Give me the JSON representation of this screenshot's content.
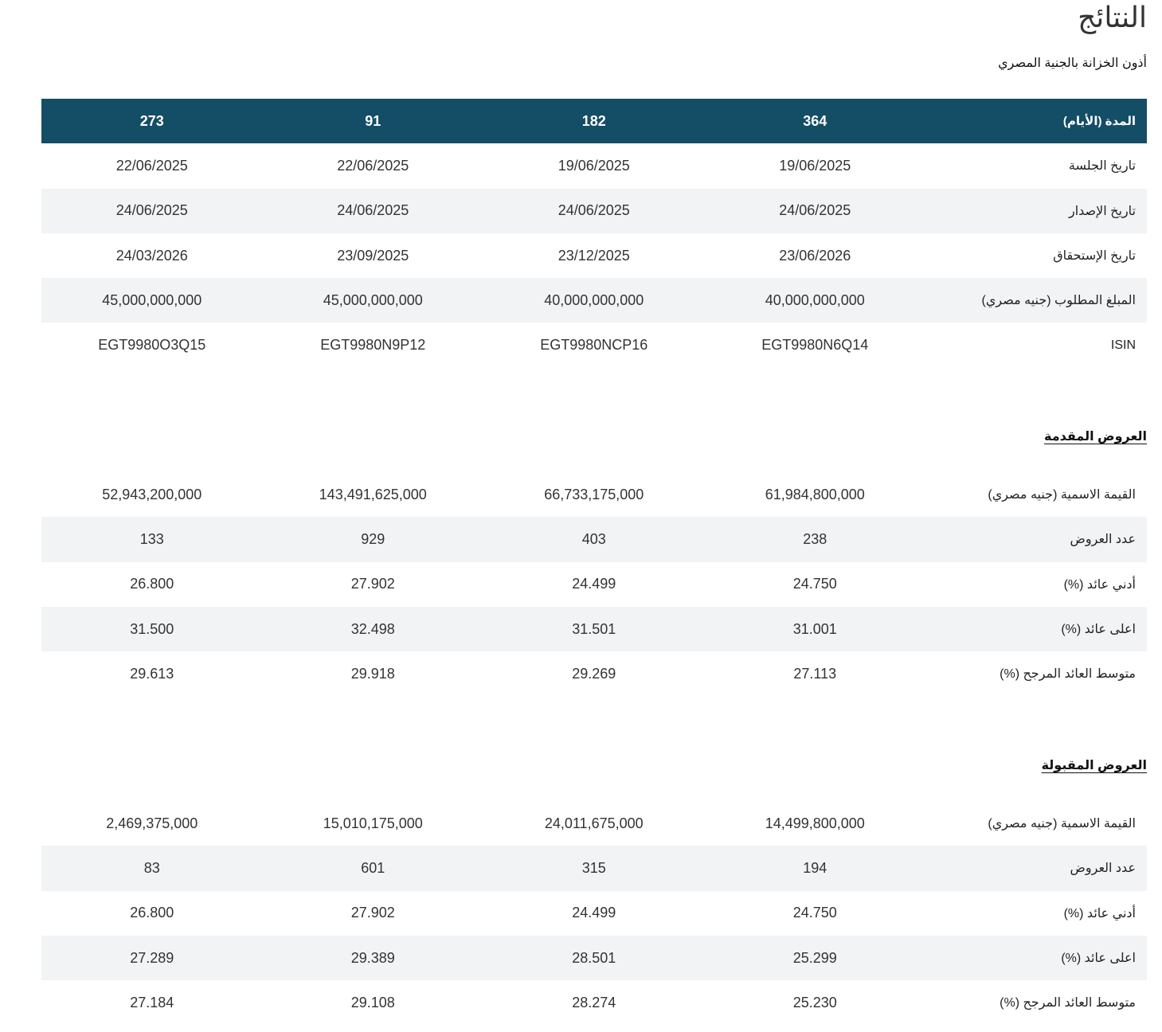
{
  "page": {
    "title": "النتائج",
    "subtitle": "أذون الخزانة بالجنية المصري"
  },
  "overview": {
    "header": {
      "label": "المدة (الأيام)",
      "values": [
        "364",
        "182",
        "91",
        "273"
      ]
    },
    "rows": [
      {
        "label": "تاريخ الجلسة",
        "values": [
          "19/06/2025",
          "19/06/2025",
          "22/06/2025",
          "22/06/2025"
        ]
      },
      {
        "label": "تاريخ الإصدار",
        "values": [
          "24/06/2025",
          "24/06/2025",
          "24/06/2025",
          "24/06/2025"
        ]
      },
      {
        "label": "تاريخ الإستحقاق",
        "values": [
          "23/06/2026",
          "23/12/2025",
          "23/09/2025",
          "24/03/2026"
        ]
      },
      {
        "label": "المبلغ المطلوب (جنيه مصري)",
        "values": [
          "40,000,000,000",
          "40,000,000,000",
          "45,000,000,000",
          "45,000,000,000"
        ]
      },
      {
        "label": "ISIN",
        "values": [
          "EGT9980N6Q14",
          "EGT9980NCP16",
          "EGT9980N9P12",
          "EGT9980O3Q15"
        ]
      }
    ]
  },
  "submitted_bids": {
    "heading": "العروض المقدمة",
    "rows": [
      {
        "label": "القيمة الاسمية (جنيه مصري)",
        "values": [
          "61,984,800,000",
          "66,733,175,000",
          "143,491,625,000",
          "52,943,200,000"
        ]
      },
      {
        "label": "عدد العروض",
        "values": [
          "238",
          "403",
          "929",
          "133"
        ]
      },
      {
        "label": "أدني عائد (%)",
        "values": [
          "24.750",
          "24.499",
          "27.902",
          "26.800"
        ]
      },
      {
        "label": "اعلى عائد (%)",
        "values": [
          "31.001",
          "31.501",
          "32.498",
          "31.500"
        ]
      },
      {
        "label": "متوسط العائد المرجح (%)",
        "values": [
          "27.113",
          "29.269",
          "29.918",
          "29.613"
        ]
      }
    ]
  },
  "accepted_bids": {
    "heading": "العروض المقبولة",
    "rows": [
      {
        "label": "القيمة الاسمية (جنيه مصري)",
        "values": [
          "14,499,800,000",
          "24,011,675,000",
          "15,010,175,000",
          "2,469,375,000"
        ]
      },
      {
        "label": "عدد العروض",
        "values": [
          "194",
          "315",
          "601",
          "83"
        ]
      },
      {
        "label": "أدني عائد (%)",
        "values": [
          "24.750",
          "24.499",
          "27.902",
          "26.800"
        ]
      },
      {
        "label": "اعلى عائد (%)",
        "values": [
          "25.299",
          "28.501",
          "29.389",
          "27.289"
        ]
      },
      {
        "label": "متوسط العائد المرجح (%)",
        "values": [
          "25.230",
          "28.274",
          "29.108",
          "27.184"
        ]
      }
    ]
  }
}
